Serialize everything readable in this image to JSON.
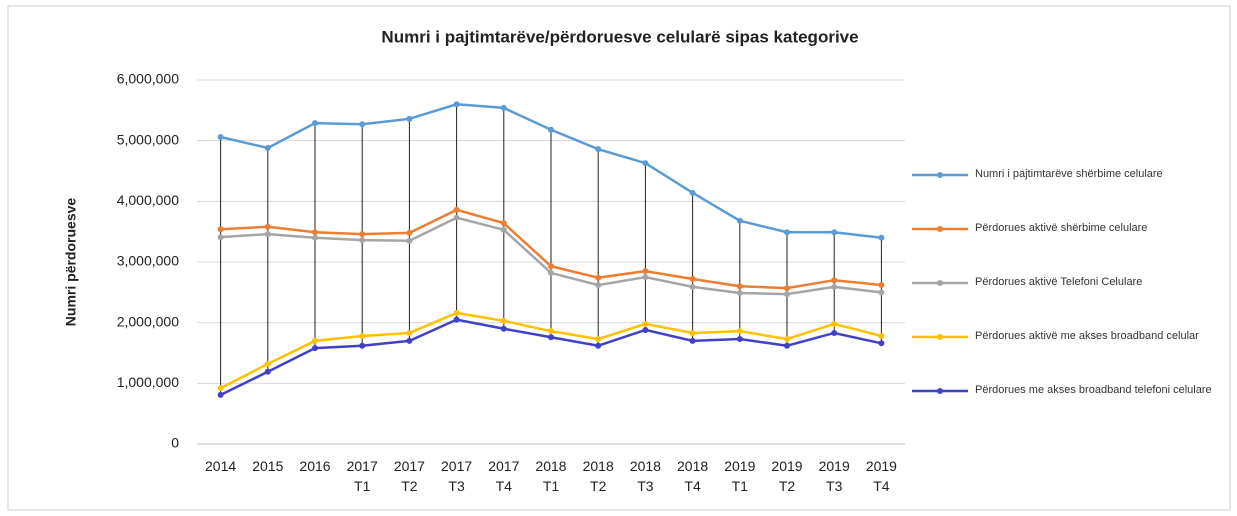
{
  "chart_data": {
    "type": "line",
    "title": "Numri i pajtimtarëve/përdoruesve celularë sipas kategorive",
    "y_label": "Numri përdoruesve",
    "categories": [
      "2014",
      "2015",
      "2016",
      "2017 T1",
      "2017 T2",
      "2017 T3",
      "2017 T4",
      "2018 T1",
      "2018 T2",
      "2018 T3",
      "2018 T4",
      "2019 T1",
      "2019 T2",
      "2019 T3",
      "2019 T4"
    ],
    "series": [
      {
        "name": "Numri i pajtimtarëve shërbime celulare",
        "color": "#5b9bd5",
        "values": [
          5060000,
          4880000,
          5290000,
          5270000,
          5360000,
          5600000,
          5540000,
          5180000,
          4860000,
          4630000,
          4140000,
          3680000,
          3490000,
          3490000,
          3400000
        ]
      },
      {
        "name": "Përdorues aktivë shërbime celulare",
        "color": "#ed7d31",
        "values": [
          3540000,
          3580000,
          3490000,
          3460000,
          3480000,
          3860000,
          3640000,
          2930000,
          2740000,
          2850000,
          2720000,
          2600000,
          2570000,
          2700000,
          2620000
        ]
      },
      {
        "name": "Përdorues aktivë Telefoni Celulare",
        "color": "#a5a5a5",
        "values": [
          3410000,
          3460000,
          3400000,
          3360000,
          3350000,
          3730000,
          3530000,
          2820000,
          2620000,
          2750000,
          2590000,
          2490000,
          2470000,
          2590000,
          2500000
        ]
      },
      {
        "name": "Përdorues aktivë me akses broadband celular",
        "color": "#ffc000",
        "values": [
          920000,
          1320000,
          1700000,
          1780000,
          1830000,
          2160000,
          2030000,
          1860000,
          1730000,
          1980000,
          1830000,
          1860000,
          1730000,
          1980000,
          1780000
        ]
      },
      {
        "name": "Përdorues me akses broadband telefoni celulare",
        "color": "#4040c8",
        "values": [
          810000,
          1190000,
          1580000,
          1620000,
          1700000,
          2050000,
          1900000,
          1760000,
          1620000,
          1880000,
          1700000,
          1730000,
          1620000,
          1830000,
          1660000
        ]
      }
    ],
    "ylim": [
      0,
      6000000
    ],
    "yticks": [
      0,
      {
        "value": 1000000,
        "label": "1,000,000"
      },
      {
        "value": 2000000,
        "label": "2,000,000"
      },
      {
        "value": 3000000,
        "label": "3,000,000"
      },
      {
        "value": 4000000,
        "label": "4,000,000"
      },
      {
        "value": 5000000,
        "label": "5,000,000"
      },
      {
        "value": 6000000,
        "label": "6,000,000"
      }
    ],
    "grid": true,
    "legend": "right"
  }
}
